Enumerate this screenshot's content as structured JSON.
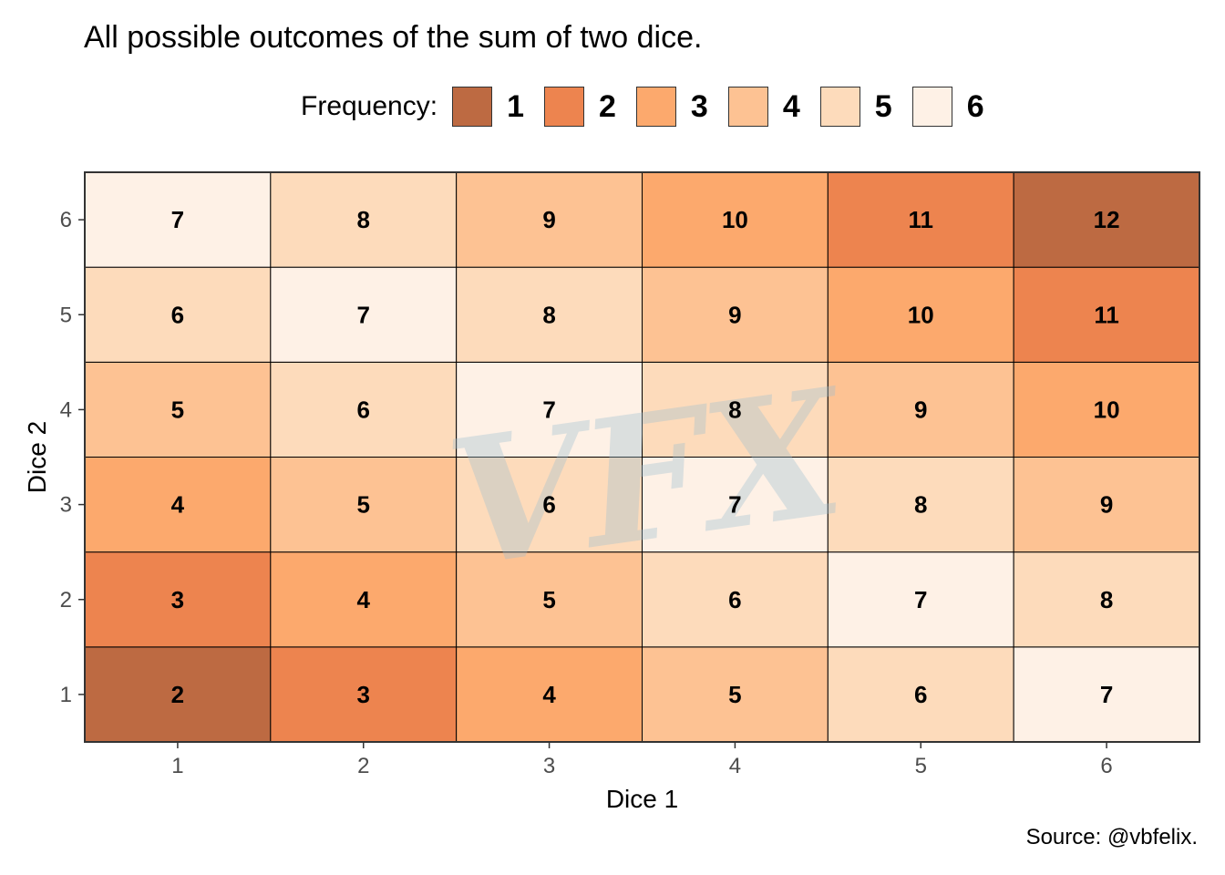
{
  "chart_data": {
    "type": "heatmap",
    "title": "All possible outcomes of the sum of two dice.",
    "xlabel": "Dice 1",
    "ylabel": "Dice 2",
    "x_categories": [
      "1",
      "2",
      "3",
      "4",
      "5",
      "6"
    ],
    "y_categories": [
      "1",
      "2",
      "3",
      "4",
      "5",
      "6"
    ],
    "cells": [
      {
        "x": 1,
        "y": 1,
        "value": 2,
        "frequency": 1
      },
      {
        "x": 2,
        "y": 1,
        "value": 3,
        "frequency": 2
      },
      {
        "x": 3,
        "y": 1,
        "value": 4,
        "frequency": 3
      },
      {
        "x": 4,
        "y": 1,
        "value": 5,
        "frequency": 4
      },
      {
        "x": 5,
        "y": 1,
        "value": 6,
        "frequency": 5
      },
      {
        "x": 6,
        "y": 1,
        "value": 7,
        "frequency": 6
      },
      {
        "x": 1,
        "y": 2,
        "value": 3,
        "frequency": 2
      },
      {
        "x": 2,
        "y": 2,
        "value": 4,
        "frequency": 3
      },
      {
        "x": 3,
        "y": 2,
        "value": 5,
        "frequency": 4
      },
      {
        "x": 4,
        "y": 2,
        "value": 6,
        "frequency": 5
      },
      {
        "x": 5,
        "y": 2,
        "value": 7,
        "frequency": 6
      },
      {
        "x": 6,
        "y": 2,
        "value": 8,
        "frequency": 5
      },
      {
        "x": 1,
        "y": 3,
        "value": 4,
        "frequency": 3
      },
      {
        "x": 2,
        "y": 3,
        "value": 5,
        "frequency": 4
      },
      {
        "x": 3,
        "y": 3,
        "value": 6,
        "frequency": 5
      },
      {
        "x": 4,
        "y": 3,
        "value": 7,
        "frequency": 6
      },
      {
        "x": 5,
        "y": 3,
        "value": 8,
        "frequency": 5
      },
      {
        "x": 6,
        "y": 3,
        "value": 9,
        "frequency": 4
      },
      {
        "x": 1,
        "y": 4,
        "value": 5,
        "frequency": 4
      },
      {
        "x": 2,
        "y": 4,
        "value": 6,
        "frequency": 5
      },
      {
        "x": 3,
        "y": 4,
        "value": 7,
        "frequency": 6
      },
      {
        "x": 4,
        "y": 4,
        "value": 8,
        "frequency": 5
      },
      {
        "x": 5,
        "y": 4,
        "value": 9,
        "frequency": 4
      },
      {
        "x": 6,
        "y": 4,
        "value": 10,
        "frequency": 3
      },
      {
        "x": 1,
        "y": 5,
        "value": 6,
        "frequency": 5
      },
      {
        "x": 2,
        "y": 5,
        "value": 7,
        "frequency": 6
      },
      {
        "x": 3,
        "y": 5,
        "value": 8,
        "frequency": 5
      },
      {
        "x": 4,
        "y": 5,
        "value": 9,
        "frequency": 4
      },
      {
        "x": 5,
        "y": 5,
        "value": 10,
        "frequency": 3
      },
      {
        "x": 6,
        "y": 5,
        "value": 11,
        "frequency": 2
      },
      {
        "x": 1,
        "y": 6,
        "value": 7,
        "frequency": 6
      },
      {
        "x": 2,
        "y": 6,
        "value": 8,
        "frequency": 5
      },
      {
        "x": 3,
        "y": 6,
        "value": 9,
        "frequency": 4
      },
      {
        "x": 4,
        "y": 6,
        "value": 10,
        "frequency": 3
      },
      {
        "x": 5,
        "y": 6,
        "value": 11,
        "frequency": 2
      },
      {
        "x": 6,
        "y": 6,
        "value": 12,
        "frequency": 1
      }
    ],
    "legend": {
      "title": "Frequency:",
      "placement": "top",
      "entries": [
        {
          "label": "1",
          "color": "#bd6a42"
        },
        {
          "label": "2",
          "color": "#ed844f"
        },
        {
          "label": "3",
          "color": "#fca96d"
        },
        {
          "label": "4",
          "color": "#fdc293"
        },
        {
          "label": "5",
          "color": "#fddbbb"
        },
        {
          "label": "6",
          "color": "#fef1e6"
        }
      ]
    },
    "grid": false
  },
  "watermark": "VFX",
  "caption": "Source: @vbfelix."
}
